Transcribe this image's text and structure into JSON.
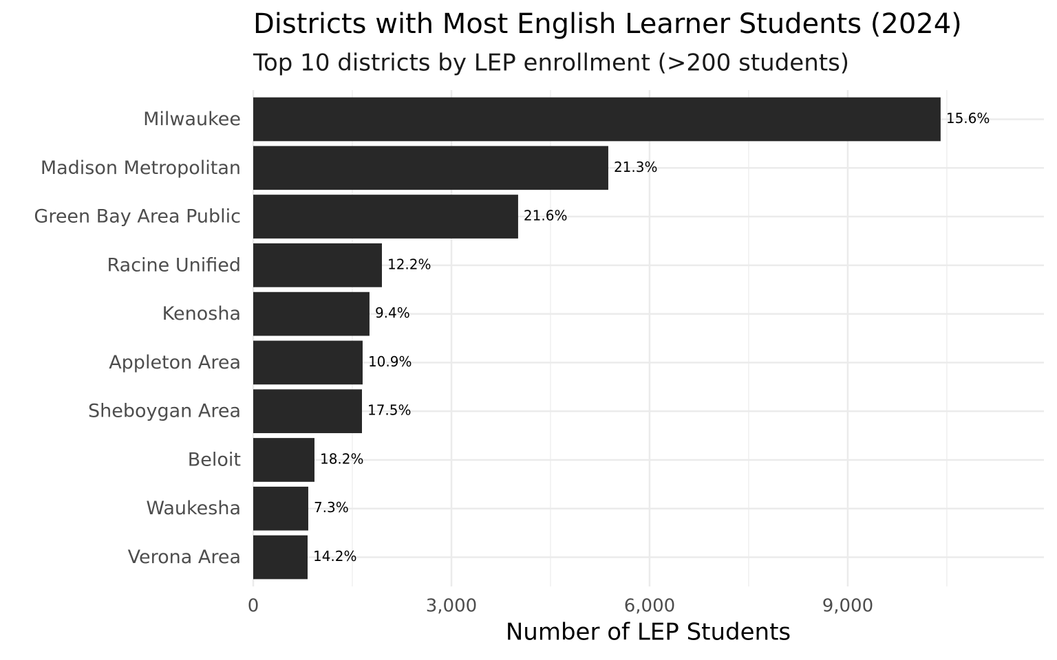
{
  "chart_data": {
    "type": "bar",
    "orientation": "horizontal",
    "title": "Districts with Most English Learner Students (2024)",
    "subtitle": "Top 10 districts by LEP enrollment (>200 students)",
    "x_label": "Number of LEP Students",
    "categories": [
      "Milwaukee",
      "Madison Metropolitan",
      "Green Bay Area Public",
      "Racine Unified",
      "Kenosha",
      "Appleton Area",
      "Sheboygan Area",
      "Beloit",
      "Waukesha",
      "Verona Area"
    ],
    "values": [
      10406,
      5375,
      4010,
      1948,
      1760,
      1656,
      1646,
      927,
      833,
      823
    ],
    "bar_labels": [
      "15.6%",
      "21.3%",
      "21.6%",
      "12.2%",
      "9.4%",
      "10.9%",
      "17.5%",
      "18.2%",
      "7.3%",
      "14.2%"
    ],
    "color": "#282828",
    "xlim": [
      0,
      11970
    ],
    "xticks": [
      0,
      {
        "value": 3000,
        "label": "3,000"
      },
      {
        "value": 6000,
        "label": "6,000"
      },
      {
        "value": 9000,
        "label": "9,000"
      }
    ],
    "xminorticks": [
      1500,
      4500,
      7500,
      10500
    ],
    "grid": true
  }
}
